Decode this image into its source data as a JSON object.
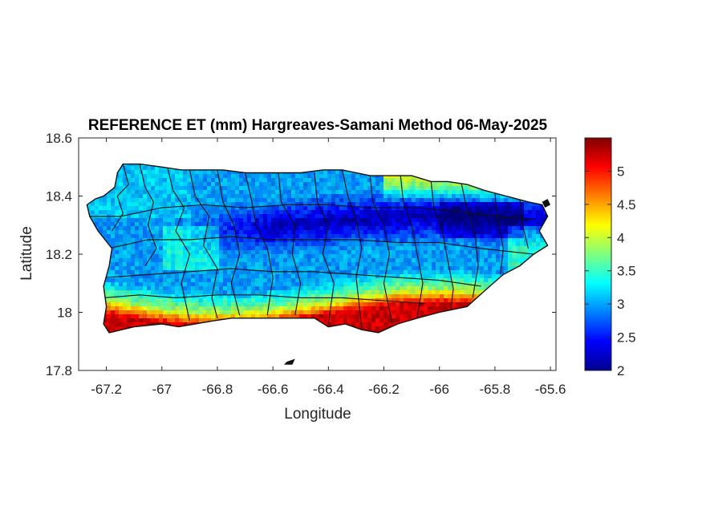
{
  "chart_data": {
    "type": "heatmap",
    "title": "REFERENCE ET (mm) Hargreaves-Samani Method  06-May-2025",
    "xlabel": "Longitude",
    "ylabel": "Latitude",
    "xlim": [
      -67.3,
      -65.58
    ],
    "ylim": [
      17.8,
      18.6
    ],
    "x_ticks": [
      -67.2,
      -67,
      -66.8,
      -66.6,
      -66.4,
      -66.2,
      -66,
      -65.8,
      -65.6
    ],
    "y_ticks": [
      17.8,
      18,
      18.2,
      18.4,
      18.6
    ],
    "x_tick_labels": [
      "-67.2",
      "-67",
      "-66.8",
      "-66.6",
      "-66.4",
      "-66.2",
      "-66",
      "-65.8",
      "-65.6"
    ],
    "y_tick_labels": [
      "17.8",
      "18",
      "18.2",
      "18.4",
      "18.6"
    ],
    "colorbar": {
      "colormap": "jet",
      "clim": [
        2,
        5.5
      ],
      "ticks": [
        2,
        2.5,
        3,
        3.5,
        4,
        4.5,
        5
      ],
      "tick_labels": [
        "2",
        "2.5",
        "3",
        "3.5",
        "4",
        "4.5",
        "5"
      ]
    },
    "grid": false,
    "value_zones": [
      {
        "region": "south coast",
        "approx_value": 5.0
      },
      {
        "region": "southern foothills",
        "approx_value": 4.0
      },
      {
        "region": "central west",
        "approx_value": 3.2
      },
      {
        "region": "central cordillera / northeast",
        "approx_value": 2.3
      },
      {
        "region": "north coast",
        "approx_value": 3.0
      },
      {
        "region": "northeast coast",
        "approx_value": 3.8
      }
    ]
  }
}
